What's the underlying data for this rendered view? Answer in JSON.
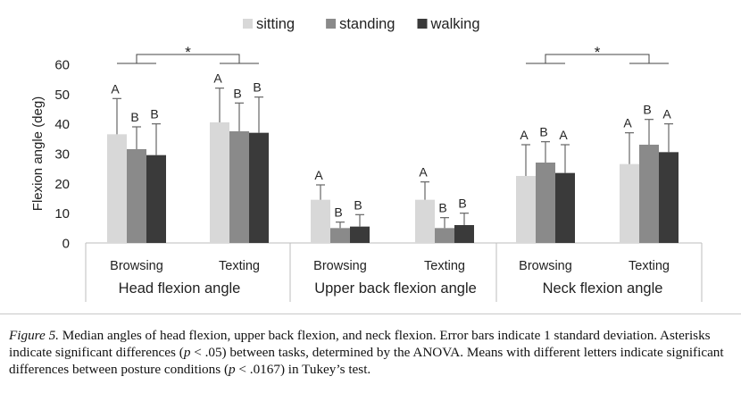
{
  "chart_data": {
    "type": "bar",
    "ylabel": "Flexion angle (deg)",
    "ylim": [
      0,
      60
    ],
    "yticks": [
      0,
      10,
      20,
      30,
      40,
      50,
      60
    ],
    "legend": {
      "placement": "top-center",
      "entries": [
        {
          "label": "sitting",
          "color": "#d8d8d8"
        },
        {
          "label": "standing",
          "color": "#8a8a8a"
        },
        {
          "label": "walking",
          "color": "#3a3a3a"
        }
      ]
    },
    "groups": [
      {
        "name": "Head flexion angle",
        "star": "*",
        "categories": [
          {
            "name": "Browsing",
            "values": [
              36.5,
              31.5,
              29.5
            ],
            "errors": [
              12,
              7.5,
              10.5
            ],
            "letters": [
              "A",
              "B",
              "B"
            ]
          },
          {
            "name": "Texting",
            "values": [
              40.5,
              37.5,
              37
            ],
            "errors": [
              11.5,
              9.5,
              12
            ],
            "letters": [
              "A",
              "B",
              "B"
            ]
          }
        ]
      },
      {
        "name": "Upper back flexion angle",
        "star": "",
        "categories": [
          {
            "name": "Browsing",
            "values": [
              14.5,
              5,
              5.5
            ],
            "errors": [
              5,
              2,
              4
            ],
            "letters": [
              "A",
              "B",
              "B"
            ]
          },
          {
            "name": "Texting",
            "values": [
              14.5,
              5,
              6
            ],
            "errors": [
              6,
              3.5,
              4
            ],
            "letters": [
              "A",
              "B",
              "B"
            ]
          }
        ]
      },
      {
        "name": "Neck flexion angle",
        "star": "*",
        "categories": [
          {
            "name": "Browsing",
            "values": [
              22.5,
              27,
              23.5
            ],
            "errors": [
              10.5,
              7,
              9.5
            ],
            "letters": [
              "A",
              "B",
              "A"
            ]
          },
          {
            "name": "Texting",
            "values": [
              26.5,
              33,
              30.5
            ],
            "errors": [
              10.5,
              8.5,
              9.5
            ],
            "letters": [
              "A",
              "B",
              "A"
            ]
          }
        ]
      }
    ]
  },
  "caption": {
    "figure_label": "Figure 5.",
    "text_1": " Median angles of head flexion, upper back flexion, and neck flexion. Error bars indicate 1 standard deviation. Asterisks indicate significant differences (",
    "p1": "p",
    "text_2": " < .05) between tasks, determined by the ANOVA. Means with different letters indicate significant differences between posture conditions (",
    "p2": "p",
    "text_3": " < .0167) in Tukey’s test."
  }
}
